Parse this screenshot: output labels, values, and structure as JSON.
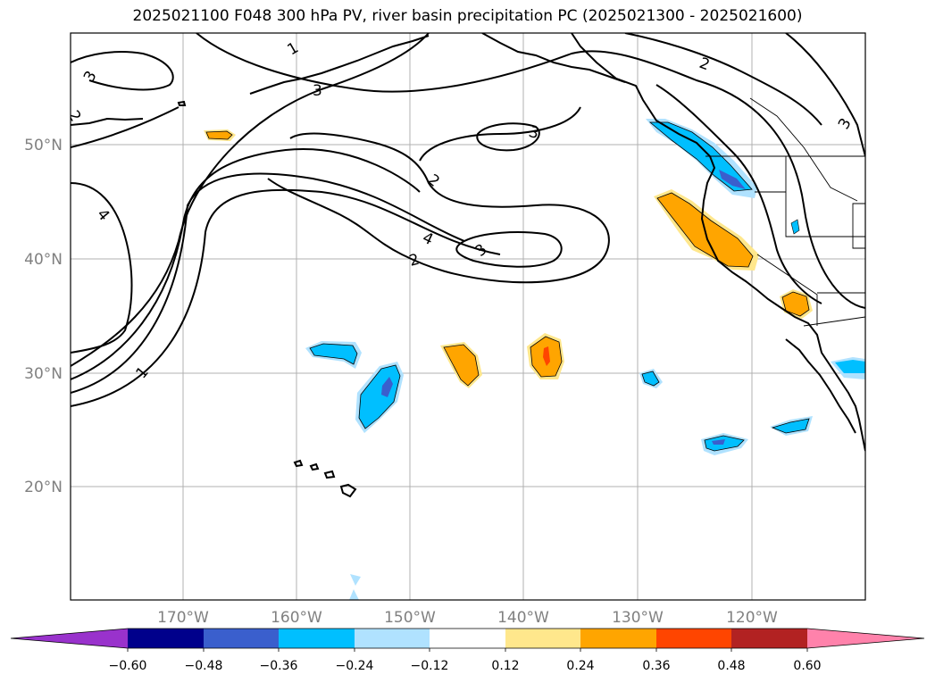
{
  "title": "2025021100 F048 300 hPa PV, river basin precipitation PC (2025021300 - 2025021600)",
  "lat_labels": [
    "50°N",
    "40°N",
    "30°N",
    "20°N"
  ],
  "lon_labels": [
    "170°W",
    "160°W",
    "150°W",
    "140°W",
    "130°W",
    "120°W"
  ],
  "pv_contour_labels": [
    "3",
    "2",
    "1",
    "3",
    "3",
    "2",
    "2",
    "4",
    "3",
    "4",
    "2",
    "1",
    "3"
  ],
  "colorbar": {
    "ticks": [
      "−0.60",
      "−0.48",
      "−0.36",
      "−0.24",
      "−0.12",
      "0.12",
      "0.24",
      "0.36",
      "0.48",
      "0.60"
    ],
    "colors": [
      "#9932cc",
      "#00008b",
      "#3a5fcd",
      "#00bfff",
      "#b0e2ff",
      "#ffffff",
      "#ffe78c",
      "#ffa500",
      "#ff4500",
      "#b22222",
      "#ff82ab"
    ]
  }
}
